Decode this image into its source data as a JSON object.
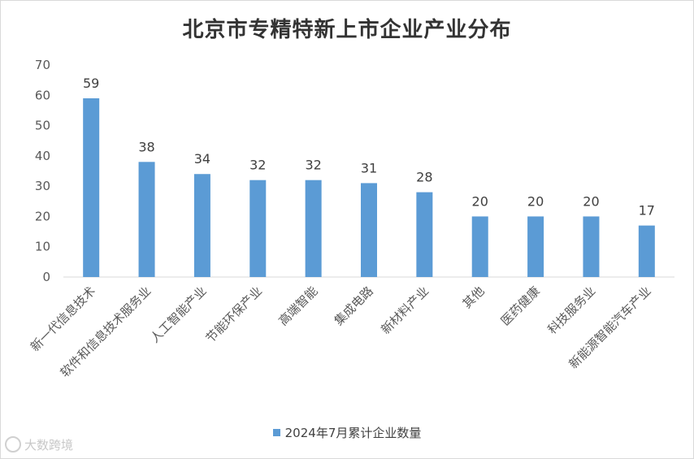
{
  "chart_data": {
    "type": "bar",
    "title": "北京市专精特新上市企业产业分布",
    "categories": [
      "新一代信息技术",
      "软件和信息技术服务业",
      "人工智能产业",
      "节能环保产业",
      "高端智能",
      "集成电路",
      "新材料产业",
      "其他",
      "医药健康",
      "科技服务业",
      "新能源智能汽车产业"
    ],
    "series": [
      {
        "name": "2024年7月累计企业数量",
        "values": [
          59,
          38,
          34,
          32,
          32,
          31,
          28,
          20,
          20,
          20,
          17
        ]
      }
    ],
    "ylim": [
      0,
      70
    ],
    "yticks": [
      "0",
      "10",
      "20",
      "30",
      "40",
      "50",
      "60",
      "70"
    ],
    "xlabel": "",
    "ylabel": "",
    "grid": false,
    "legend_position": "bottom",
    "data_labels": true,
    "bar_color": "#5b9bd5"
  },
  "watermark": {
    "text": "大数跨境"
  }
}
